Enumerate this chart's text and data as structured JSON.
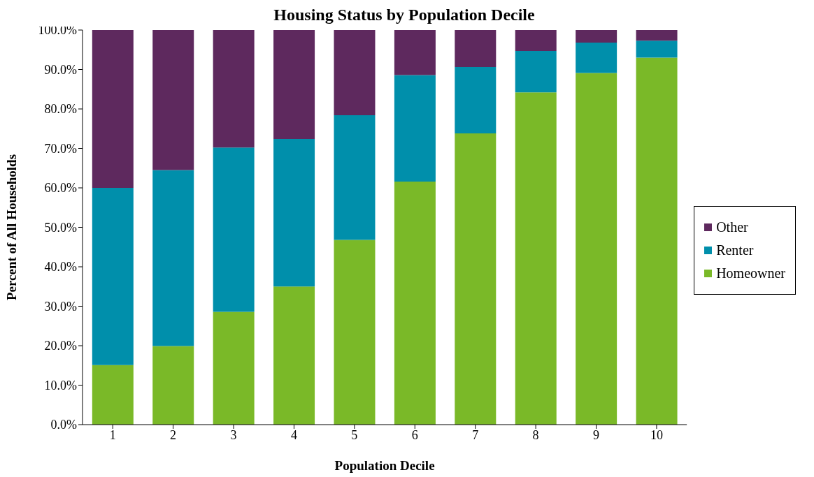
{
  "chart_data": {
    "type": "bar",
    "title": "Housing Status by Population Decile",
    "xlabel": "Population Decile",
    "ylabel": "Percent of All Households",
    "stacked": true,
    "categories": [
      "1",
      "2",
      "3",
      "4",
      "5",
      "6",
      "7",
      "8",
      "9",
      "10"
    ],
    "series": [
      {
        "name": "Homeowner",
        "color": "#7ab928",
        "values": [
          15.1,
          19.9,
          28.6,
          35.0,
          46.8,
          61.6,
          73.8,
          84.2,
          89.1,
          93.0
        ]
      },
      {
        "name": "Renter",
        "color": "#008fab",
        "values": [
          44.9,
          44.6,
          41.6,
          37.4,
          31.6,
          27.0,
          16.8,
          10.5,
          7.7,
          4.3
        ]
      },
      {
        "name": "Other",
        "color": "#5e295e",
        "values": [
          40.0,
          35.5,
          29.8,
          27.6,
          21.6,
          11.4,
          9.4,
          5.3,
          3.2,
          2.7
        ]
      }
    ],
    "ylim": [
      0,
      100
    ],
    "yticks": [
      {
        "value": 0,
        "label": "0.0%"
      },
      {
        "value": 10,
        "label": "10.0%"
      },
      {
        "value": 20,
        "label": "20.0%"
      },
      {
        "value": 30,
        "label": "30.0%"
      },
      {
        "value": 40,
        "label": "40.0%"
      },
      {
        "value": 50,
        "label": "50.0%"
      },
      {
        "value": 60,
        "label": "60.0%"
      },
      {
        "value": 70,
        "label": "70.0%"
      },
      {
        "value": 80,
        "label": "80.0%"
      },
      {
        "value": 90,
        "label": "90.0%"
      },
      {
        "value": 100,
        "label": "100.0%"
      }
    ],
    "grid": false,
    "legend": "right"
  }
}
